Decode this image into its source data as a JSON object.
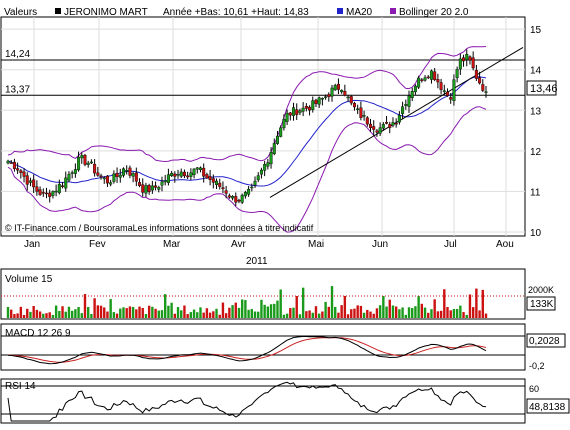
{
  "header": {
    "valeurs_label": "Valeurs",
    "ticker": "JERONIMO MART",
    "stats": "Année +Bas: 10,61 +Haut: 14,83",
    "ma_label": "MA20",
    "bb_label": "Bollinger 20 2.0"
  },
  "colors": {
    "up": "#1a9a1a",
    "down": "#cc1111",
    "ma": "#2222cc",
    "bollinger": "#8a1ab0",
    "macd_signal": "#cc2222",
    "grid": "#dddddd",
    "axis": "#000000"
  },
  "copyright": "© IT-Finance.com / BoursoramaLes informations sont données à titre indicatif",
  "year_label": "2011",
  "chart_data": [
    {
      "type": "candlestick",
      "x_labels": [
        "Jan",
        "Fev",
        "Mar",
        "Avr",
        "Mai",
        "Jun",
        "Jul",
        "Aou"
      ],
      "y_ticks": [
        "10",
        "11",
        "12",
        "13",
        "14",
        "15"
      ],
      "ylim": [
        9.9,
        15.3
      ],
      "last_price": "13,46",
      "hlines": [
        {
          "value": 14.24,
          "label": "14,24"
        },
        {
          "value": 13.37,
          "label": "13,37"
        }
      ],
      "trendline": {
        "from": [
          11.0,
          10.85
        ],
        "to": [
          14.1,
          14.55
        ]
      },
      "key_points": [
        11.75,
        11.6,
        11.3,
        11.05,
        10.9,
        11.0,
        11.2,
        11.5,
        11.8,
        11.7,
        11.4,
        11.25,
        11.35,
        11.6,
        11.35,
        11.05,
        11.05,
        11.2,
        11.4,
        11.5,
        11.45,
        11.55,
        11.35,
        11.2,
        11.05,
        10.8,
        10.85,
        11.0,
        11.45,
        11.9,
        12.5,
        12.9,
        13.0,
        13.05,
        13.15,
        13.3,
        13.5,
        13.6,
        13.15,
        12.9,
        12.7,
        12.55,
        12.6,
        12.75,
        13.2,
        13.6,
        13.85,
        13.95,
        13.6,
        13.3,
        14.2,
        14.3,
        13.8,
        13.46
      ]
    },
    {
      "type": "bar",
      "title": "Volume 15",
      "y_ticks": [
        "2000K"
      ],
      "last_value": "133K"
    },
    {
      "type": "line",
      "title": "MACD 12 26 9",
      "y_ticks": [
        "0,2",
        "-0,2"
      ],
      "last_value": "0,2028"
    },
    {
      "type": "line",
      "title": "RSI 14",
      "y_ticks": [
        "60"
      ],
      "last_value": "48,8138"
    }
  ]
}
